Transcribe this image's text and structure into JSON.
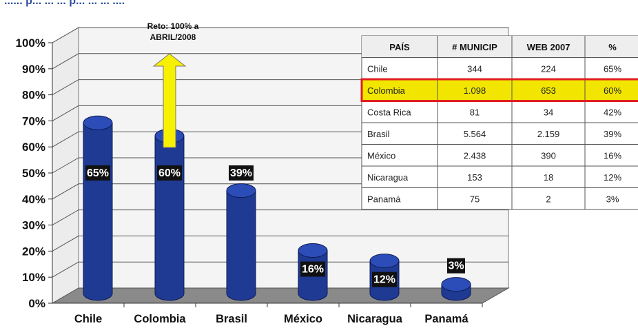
{
  "title_fragment": "...... p... ... ... p... ... ... ....",
  "chart_data": {
    "type": "bar",
    "categories": [
      "Chile",
      "Colombia",
      "Brasil",
      "México",
      "Nicaragua",
      "Panamá"
    ],
    "values": [
      65,
      60,
      39,
      16,
      12,
      3
    ],
    "value_labels": [
      "65%",
      "60%",
      "39%",
      "16%",
      "12%",
      "3%"
    ],
    "ylim": [
      0,
      100
    ],
    "yticks": [
      "0%",
      "10%",
      "20%",
      "30%",
      "40%",
      "50%",
      "60%",
      "70%",
      "80%",
      "90%",
      "100%"
    ],
    "grid": true,
    "bar_color": "#1f3a93",
    "highlight_color": "#f2e600",
    "annotation": {
      "line1": "Reto: 100% a",
      "line2": "ABRIL/2008",
      "category": "Colombia",
      "target_value": 100
    }
  },
  "table": {
    "headers": [
      "PAÍS",
      "# MUNICIP",
      "WEB 2007",
      "%"
    ],
    "rows": [
      [
        "Chile",
        "344",
        "224",
        "65%"
      ],
      [
        "Colombia",
        "1.098",
        "653",
        "60%"
      ],
      [
        "Costa Rica",
        "81",
        "34",
        "42%"
      ],
      [
        "Brasil",
        "5.564",
        "2.159",
        "39%"
      ],
      [
        "México",
        "2.438",
        "390",
        "16%"
      ],
      [
        "Nicaragua",
        "153",
        "18",
        "12%"
      ],
      [
        "Panamá",
        "75",
        "2",
        "3%"
      ]
    ],
    "highlight_row": 1,
    "highlight_fill": "#f2e600",
    "highlight_border": "#e02020",
    "header_fill": "#eeeeee"
  }
}
